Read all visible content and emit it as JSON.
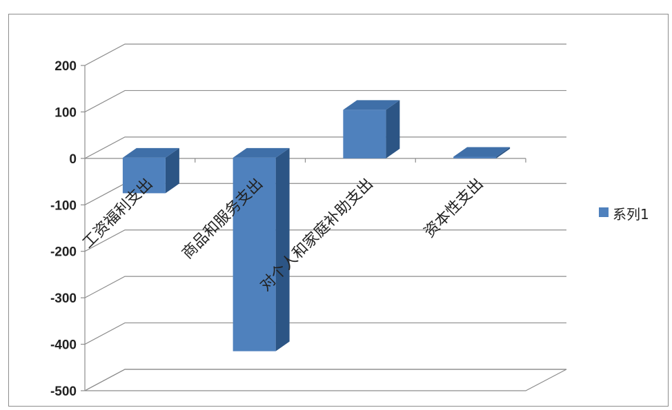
{
  "chart_data": {
    "type": "bar",
    "categories": [
      "工资福利支出",
      "商品和服务支出",
      "对个人和家庭补助支出",
      "资本性支出"
    ],
    "series": [
      {
        "name": "系列1",
        "values": [
          -75,
          -415,
          103,
          2
        ]
      }
    ],
    "yticks": [
      "200",
      "100",
      "0",
      "-100",
      "-200",
      "-300",
      "-400",
      "-500"
    ],
    "ylim": [
      -500,
      200
    ],
    "grid": true,
    "legend_position": "right",
    "colors": {
      "bar_front": "#4f81bd",
      "bar_side": "#2c5585",
      "bar_top": "#3f6fa8",
      "grid": "#8c8c8c"
    }
  }
}
